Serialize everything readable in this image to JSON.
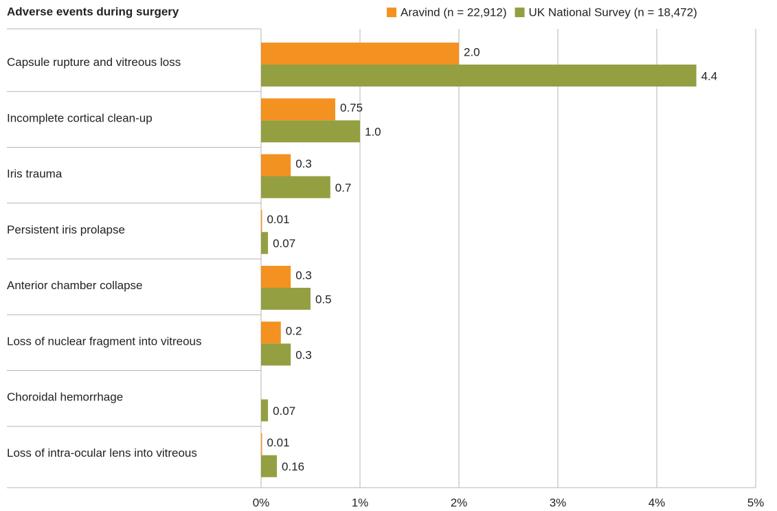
{
  "chart_data": {
    "type": "bar",
    "orientation": "horizontal",
    "title": "Adverse events during surgery",
    "categories": [
      "Capsule rupture and vitreous loss",
      "Incomplete cortical clean-up",
      "Iris trauma",
      "Persistent iris prolapse",
      "Anterior chamber collapse",
      "Loss of nuclear fragment into vitreous",
      "Choroidal hemorrhage",
      "Loss of intra-ocular lens into vitreous"
    ],
    "series": [
      {
        "name": "Aravind (n = 22,912)",
        "color": "#f39220",
        "values": [
          2.0,
          0.75,
          0.3,
          0.01,
          0.3,
          0.2,
          null,
          0.01
        ],
        "value_labels": [
          "2.0",
          "0.75",
          "0.3",
          "0.01",
          "0.3",
          "0.2",
          null,
          "0.01"
        ]
      },
      {
        "name": "UK National Survey (n = 18,472)",
        "color": "#949f42",
        "values": [
          4.4,
          1.0,
          0.7,
          0.07,
          0.5,
          0.3,
          0.07,
          0.16
        ],
        "value_labels": [
          "4.4",
          "1.0",
          "0.7",
          "0.07",
          "0.5",
          "0.3",
          "0.07",
          "0.16"
        ]
      }
    ],
    "xlim": [
      0,
      5
    ],
    "xticks": [
      {
        "value": 0,
        "label": "0%"
      },
      {
        "value": 1,
        "label": "1%"
      },
      {
        "value": 2,
        "label": "2%"
      },
      {
        "value": 3,
        "label": "3%"
      },
      {
        "value": 4,
        "label": "4%"
      },
      {
        "value": 5,
        "label": "5%"
      }
    ],
    "grid": true
  }
}
